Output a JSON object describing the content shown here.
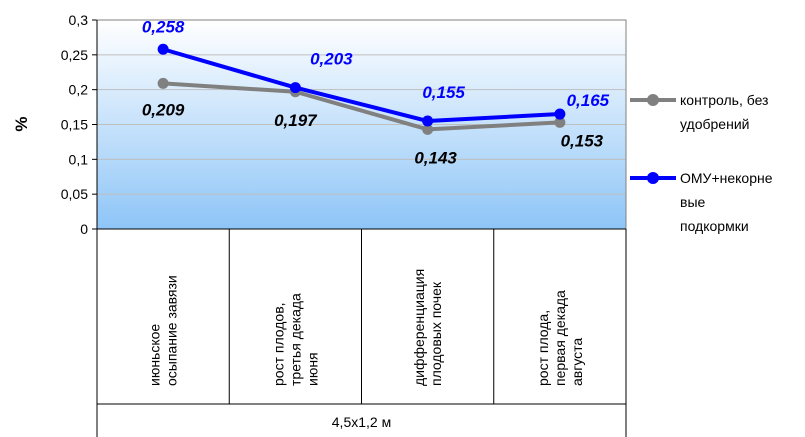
{
  "chart_data": {
    "type": "line",
    "ylabel": "%",
    "ylim": [
      0,
      0.3
    ],
    "yticks": [
      "0",
      "0,05",
      "0,1",
      "0,15",
      "0,2",
      "0,25",
      "0,3"
    ],
    "categories": [
      [
        "июньское",
        "осыпание завязи"
      ],
      [
        "рост плодов,",
        "третья декада",
        "июня"
      ],
      [
        "дифференциация",
        "плодовых почек"
      ],
      [
        "рост плода,",
        "первая декада",
        "августа"
      ]
    ],
    "group_label": "4,5х1,2 м",
    "series": [
      {
        "name": "контроль, без удобрений",
        "legend_lines": [
          "контроль, без",
          "удобрений"
        ],
        "color": "#808080",
        "label_color": "#000000",
        "values": [
          0.209,
          0.197,
          0.143,
          0.153
        ],
        "labels": [
          "0,209",
          "0,197",
          "0,143",
          "0,153"
        ]
      },
      {
        "name": "ОМУ+некорневые подкормки",
        "legend_lines": [
          "ОМУ+некорне",
          "вые",
          "подкормки"
        ],
        "color": "#0000ff",
        "label_color": "#0000ff",
        "values": [
          0.258,
          0.203,
          0.155,
          0.165
        ],
        "labels": [
          "0,258",
          "0,203",
          "0,155",
          "0,165"
        ]
      }
    ]
  }
}
